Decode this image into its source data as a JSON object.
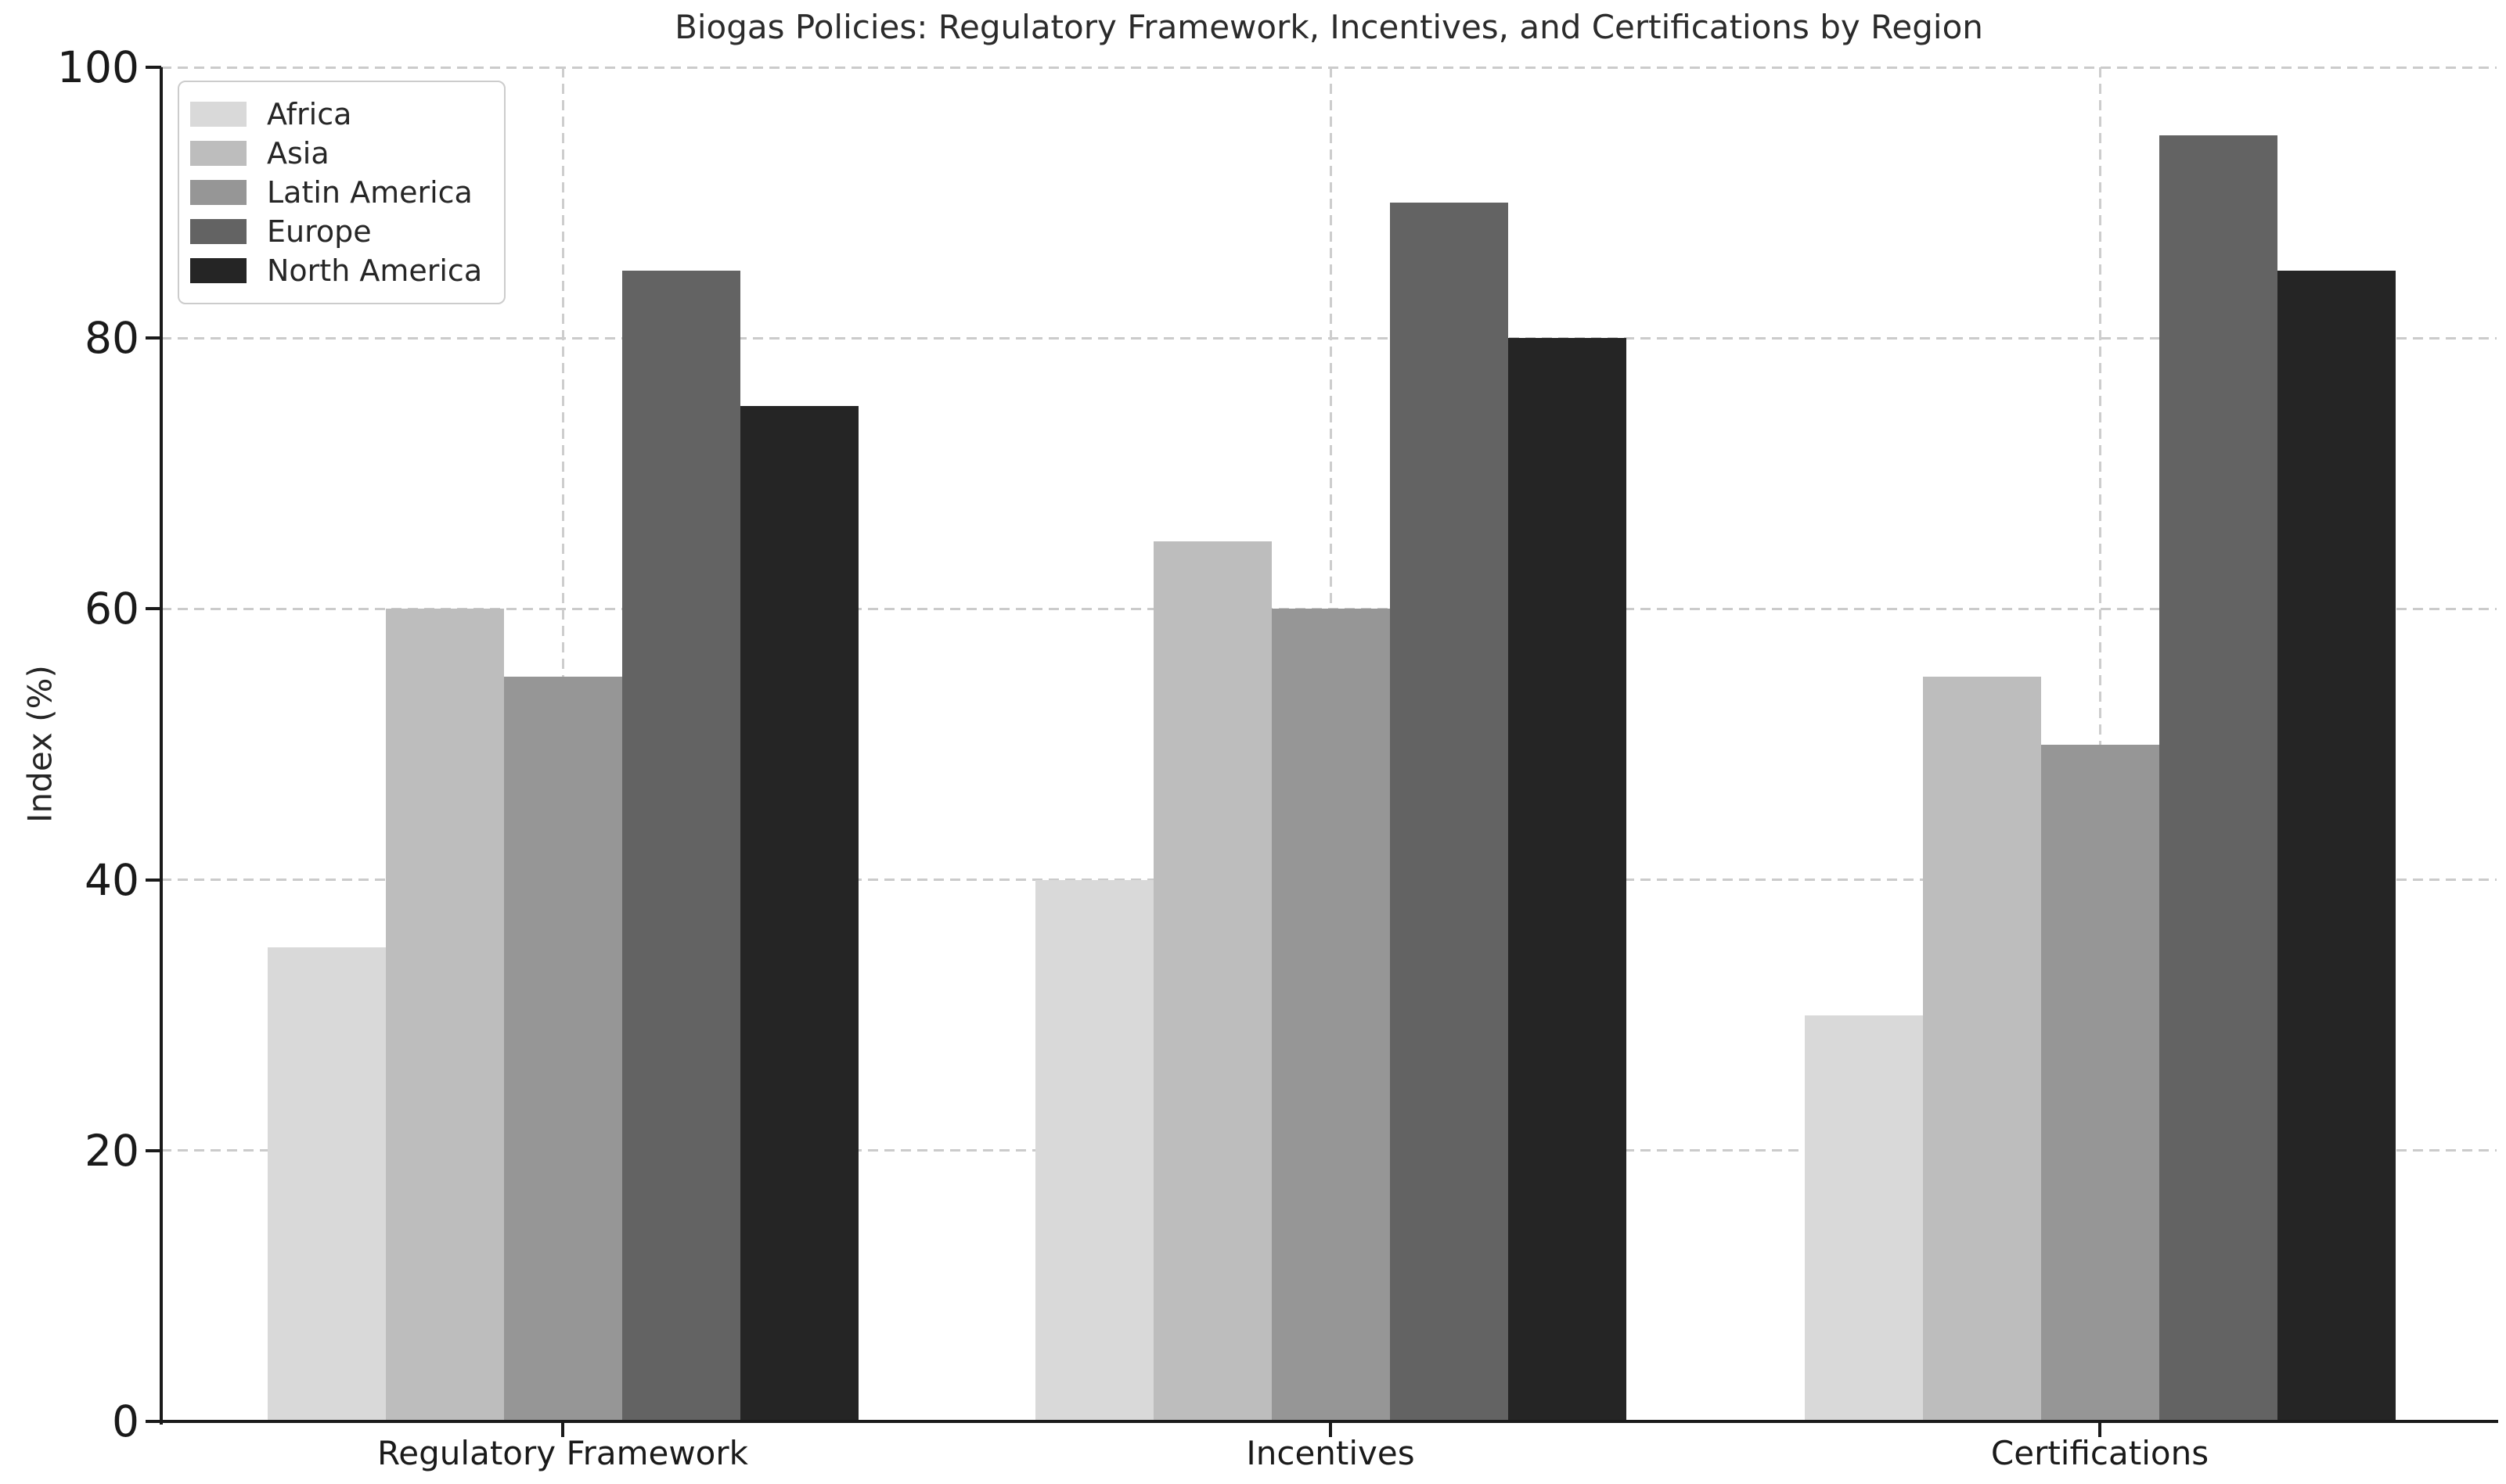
{
  "chart_data": {
    "type": "bar",
    "title": "Biogas Policies: Regulatory Framework, Incentives, and Certifications by Region",
    "ylabel": "Index (%)",
    "xlabel": "",
    "categories": [
      "Regulatory Framework",
      "Incentives",
      "Certifications"
    ],
    "series": [
      {
        "name": "Africa",
        "color": "#d9d9d9",
        "values": [
          35,
          40,
          30
        ]
      },
      {
        "name": "Asia",
        "color": "#bdbdbd",
        "values": [
          60,
          65,
          55
        ]
      },
      {
        "name": "Latin America",
        "color": "#969696",
        "values": [
          55,
          60,
          50
        ]
      },
      {
        "name": "Europe",
        "color": "#636363",
        "values": [
          85,
          90,
          95
        ]
      },
      {
        "name": "North America",
        "color": "#252525",
        "values": [
          75,
          80,
          85
        ]
      }
    ],
    "ylim": [
      0,
      100
    ],
    "yticks": [
      0,
      20,
      40,
      60,
      80,
      100
    ],
    "grid": "dashed gridlines on both axes, drawn behind bars",
    "legend_position": "upper left",
    "axis_color": "#1a1a1a",
    "grid_color": "#cbcbcb"
  }
}
